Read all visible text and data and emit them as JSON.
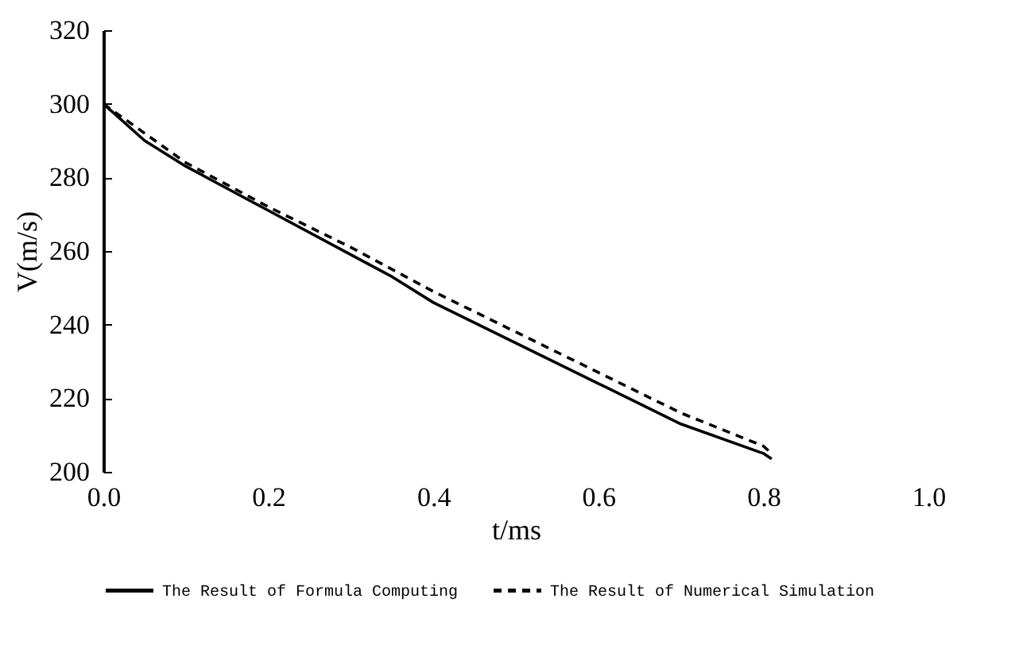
{
  "chart_data": {
    "type": "line",
    "xlabel": "t/ms",
    "ylabel": "V(m/s)",
    "xlim": [
      0,
      1
    ],
    "xticks": [
      {
        "value": 0,
        "label": "0.0"
      },
      0.2,
      0.4,
      0.6,
      0.8,
      {
        "value": 1,
        "label": "1.0"
      }
    ],
    "ylim": [
      200,
      320
    ],
    "yticks": [
      200,
      220,
      240,
      260,
      280,
      300,
      320
    ],
    "grid": false,
    "legend": "bottom",
    "marker": "none",
    "series": [
      {
        "name": "The Result of Formula Computing",
        "color": "#000000",
        "line_style": "solid",
        "x": [
          0,
          0.05,
          0.1,
          0.15,
          0.2,
          0.3,
          0.35,
          0.4,
          0.5,
          0.6,
          0.7,
          0.8,
          0.81
        ],
        "values": [
          300,
          290,
          283,
          277,
          271,
          259,
          253,
          246,
          235,
          224,
          213,
          205,
          203.5
        ]
      },
      {
        "name": "The Result of Numerical Simulation",
        "color": "#000000",
        "line_style": "dashed",
        "x": [
          0,
          0.1,
          0.2,
          0.3,
          0.4,
          0.5,
          0.6,
          0.7,
          0.8,
          0.81
        ],
        "values": [
          300,
          284,
          272,
          261,
          249,
          238,
          227,
          216,
          207,
          205
        ]
      }
    ]
  }
}
